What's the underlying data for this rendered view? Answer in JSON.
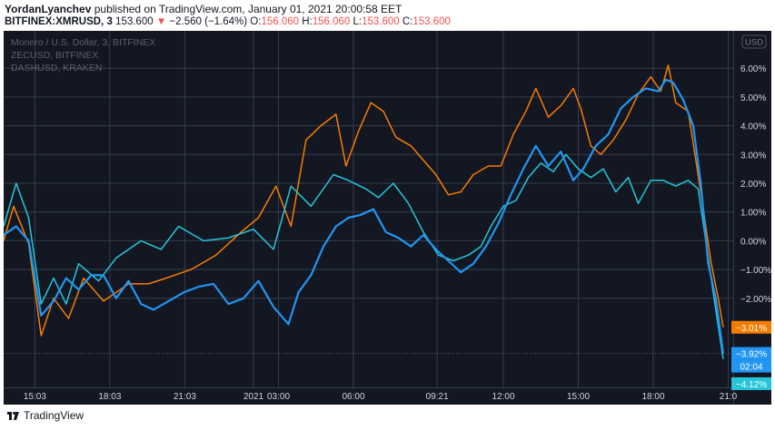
{
  "header": {
    "author": "YordanLyanchev",
    "published": "published on TradingView.com, January 01, 2021 20:00:58 EET",
    "symbol": "BITFINEX:XMRUSD, 3",
    "price": "153.600",
    "change_arrow": "▼",
    "change": "−2.560 (−1.64%)",
    "o_label": "O:",
    "o": "156.060",
    "h_label": "H:",
    "h": "156.060",
    "l_label": "L:",
    "l": "153.600",
    "c_label": "C:",
    "c": "153.600"
  },
  "footer": {
    "brand": "TradingView"
  },
  "colors": {
    "background": "#131722",
    "grid": "#363c4e",
    "xmr": "#2196f3",
    "zec": "#f57c00",
    "dash": "#26c6da",
    "down": "#ef5350"
  },
  "chart_data": {
    "type": "line",
    "legend": [
      "Monero / U.S. Dollar, 3, BITFINEX",
      "ZECUSD, BITFINEX",
      "DASHUSD, KRAKEN"
    ],
    "currency_button": "USD",
    "y_ticks": [
      "6.00%",
      "5.00%",
      "4.00%",
      "3.00%",
      "2.00%",
      "1.00%",
      "0.00%",
      "−1.00%",
      "−2.00%"
    ],
    "y_tick_values": [
      6,
      5,
      4,
      3,
      2,
      1,
      0,
      -1,
      -2
    ],
    "x_ticks": [
      "15:03",
      "18:03",
      "21:03",
      "2021",
      "03:00",
      "06:00",
      "09:21",
      "12:00",
      "15:00",
      "18:00",
      "21:0"
    ],
    "x_tick_positions": [
      -3.75,
      -0.75,
      2.25,
      5,
      6,
      9,
      12.35,
      15,
      18,
      21,
      24
    ],
    "xlim": [
      -5,
      24.2
    ],
    "ylim": [
      -5.1,
      7.3
    ],
    "series": [
      {
        "name": "ZECUSD, BITFINEX",
        "color": "#f57c00",
        "end_label": "−3.01%",
        "end_value": -3.01,
        "points": [
          [
            -5,
            0
          ],
          [
            -4.6,
            1.2
          ],
          [
            -4,
            -0.1
          ],
          [
            -3.5,
            -3.3
          ],
          [
            -3,
            -2
          ],
          [
            -2.4,
            -2.7
          ],
          [
            -1.8,
            -1.3
          ],
          [
            -1,
            -2.1
          ],
          [
            0,
            -1.5
          ],
          [
            0.8,
            -1.5
          ],
          [
            1.5,
            -1.3
          ],
          [
            2.5,
            -1
          ],
          [
            3.5,
            -0.5
          ],
          [
            4.5,
            0.3
          ],
          [
            5.2,
            0.8
          ],
          [
            5.9,
            1.9
          ],
          [
            6.5,
            0.5
          ],
          [
            7.1,
            3.5
          ],
          [
            7.7,
            4
          ],
          [
            8.3,
            4.4
          ],
          [
            8.7,
            2.6
          ],
          [
            9.2,
            3.8
          ],
          [
            9.7,
            4.8
          ],
          [
            10.2,
            4.5
          ],
          [
            10.7,
            3.6
          ],
          [
            11.3,
            3.3
          ],
          [
            11.8,
            2.8
          ],
          [
            12.3,
            2.3
          ],
          [
            12.8,
            1.6
          ],
          [
            13.3,
            1.7
          ],
          [
            13.8,
            2.3
          ],
          [
            14.4,
            2.6
          ],
          [
            14.9,
            2.6
          ],
          [
            15.4,
            3.7
          ],
          [
            15.9,
            4.5
          ],
          [
            16.3,
            5.3
          ],
          [
            16.8,
            4.3
          ],
          [
            17.3,
            4.7
          ],
          [
            17.8,
            5.3
          ],
          [
            18.1,
            4.6
          ],
          [
            18.5,
            3.3
          ],
          [
            18.9,
            3
          ],
          [
            19.4,
            3.5
          ],
          [
            19.9,
            4.2
          ],
          [
            20.4,
            5.1
          ],
          [
            20.9,
            5.7
          ],
          [
            21.3,
            5.2
          ],
          [
            21.6,
            6.1
          ],
          [
            21.9,
            4.8
          ],
          [
            22.4,
            4.5
          ],
          [
            22.9,
            1.7
          ],
          [
            23.3,
            -0.7
          ],
          [
            23.6,
            -2
          ],
          [
            23.8,
            -3.01
          ]
        ]
      },
      {
        "name": "DASHUSD, KRAKEN",
        "color": "#26c6da",
        "end_label": "−4.12%",
        "end_value": -4.12,
        "points": [
          [
            -5,
            0.5
          ],
          [
            -4.5,
            2
          ],
          [
            -4,
            0.8
          ],
          [
            -3.5,
            -2.2
          ],
          [
            -3,
            -1.3
          ],
          [
            -2.5,
            -2.2
          ],
          [
            -2,
            -0.8
          ],
          [
            -1.2,
            -1.4
          ],
          [
            -0.5,
            -0.6
          ],
          [
            0.5,
            0
          ],
          [
            1.3,
            -0.3
          ],
          [
            2,
            0.5
          ],
          [
            3,
            0
          ],
          [
            4,
            0.1
          ],
          [
            5,
            0.4
          ],
          [
            5.8,
            -0.3
          ],
          [
            6.5,
            1.9
          ],
          [
            7.3,
            1.2
          ],
          [
            8.2,
            2.3
          ],
          [
            8.8,
            2.1
          ],
          [
            9.5,
            1.8
          ],
          [
            10,
            1.5
          ],
          [
            10.6,
            2
          ],
          [
            11.2,
            1.3
          ],
          [
            11.8,
            0.3
          ],
          [
            12.4,
            -0.5
          ],
          [
            13,
            -0.7
          ],
          [
            13.6,
            -0.5
          ],
          [
            14.1,
            -0.2
          ],
          [
            14.5,
            0.5
          ],
          [
            15,
            1.2
          ],
          [
            15.5,
            1.4
          ],
          [
            16,
            2.2
          ],
          [
            16.5,
            2.7
          ],
          [
            17,
            2.4
          ],
          [
            17.5,
            3
          ],
          [
            18,
            2.5
          ],
          [
            18.5,
            2.2
          ],
          [
            19,
            2.5
          ],
          [
            19.5,
            1.7
          ],
          [
            20,
            2.2
          ],
          [
            20.4,
            1.3
          ],
          [
            20.9,
            2.1
          ],
          [
            21.4,
            2.1
          ],
          [
            21.9,
            1.9
          ],
          [
            22.4,
            2.1
          ],
          [
            22.8,
            1.8
          ],
          [
            23.1,
            0
          ],
          [
            23.4,
            -1.8
          ],
          [
            23.8,
            -4.12
          ]
        ]
      },
      {
        "name": "Monero / U.S. Dollar, 3, BITFINEX",
        "color": "#2196f3",
        "end_label": "−3.92%",
        "end_value": -3.92,
        "points": [
          [
            -5,
            0.2
          ],
          [
            -4.5,
            0.5
          ],
          [
            -4,
            0
          ],
          [
            -3.5,
            -2.6
          ],
          [
            -3,
            -2.1
          ],
          [
            -2.5,
            -1.3
          ],
          [
            -2,
            -1.7
          ],
          [
            -1.5,
            -1.2
          ],
          [
            -1,
            -1.2
          ],
          [
            -0.5,
            -2
          ],
          [
            0,
            -1.4
          ],
          [
            0.5,
            -2.2
          ],
          [
            1,
            -2.4
          ],
          [
            1.6,
            -2.1
          ],
          [
            2.2,
            -1.8
          ],
          [
            2.8,
            -1.6
          ],
          [
            3.4,
            -1.5
          ],
          [
            4,
            -2.2
          ],
          [
            4.6,
            -2
          ],
          [
            5.2,
            -1.4
          ],
          [
            5.8,
            -2.3
          ],
          [
            6.4,
            -2.9
          ],
          [
            6.8,
            -1.8
          ],
          [
            7.3,
            -1.2
          ],
          [
            7.8,
            -0.2
          ],
          [
            8.3,
            0.5
          ],
          [
            8.8,
            0.8
          ],
          [
            9.3,
            0.9
          ],
          [
            9.8,
            1.1
          ],
          [
            10.3,
            0.3
          ],
          [
            10.8,
            0.1
          ],
          [
            11.3,
            -0.2
          ],
          [
            11.8,
            0.2
          ],
          [
            12.3,
            -0.3
          ],
          [
            12.8,
            -0.7
          ],
          [
            13.3,
            -1.1
          ],
          [
            13.8,
            -0.8
          ],
          [
            14.3,
            -0.2
          ],
          [
            14.8,
            0.6
          ],
          [
            15.3,
            1.6
          ],
          [
            15.8,
            2.5
          ],
          [
            16.3,
            3.3
          ],
          [
            16.8,
            2.6
          ],
          [
            17.3,
            3.1
          ],
          [
            17.8,
            2.1
          ],
          [
            18.2,
            2.5
          ],
          [
            18.7,
            3.3
          ],
          [
            19.2,
            3.7
          ],
          [
            19.7,
            4.6
          ],
          [
            20.2,
            5
          ],
          [
            20.7,
            5.3
          ],
          [
            21.2,
            5.2
          ],
          [
            21.5,
            5.6
          ],
          [
            21.8,
            5.5
          ],
          [
            22.2,
            4.9
          ],
          [
            22.6,
            4
          ],
          [
            22.9,
            2
          ],
          [
            23.2,
            -0.8
          ],
          [
            23.5,
            -2
          ],
          [
            23.8,
            -3.92
          ]
        ]
      }
    ],
    "time_label": "02:04"
  }
}
